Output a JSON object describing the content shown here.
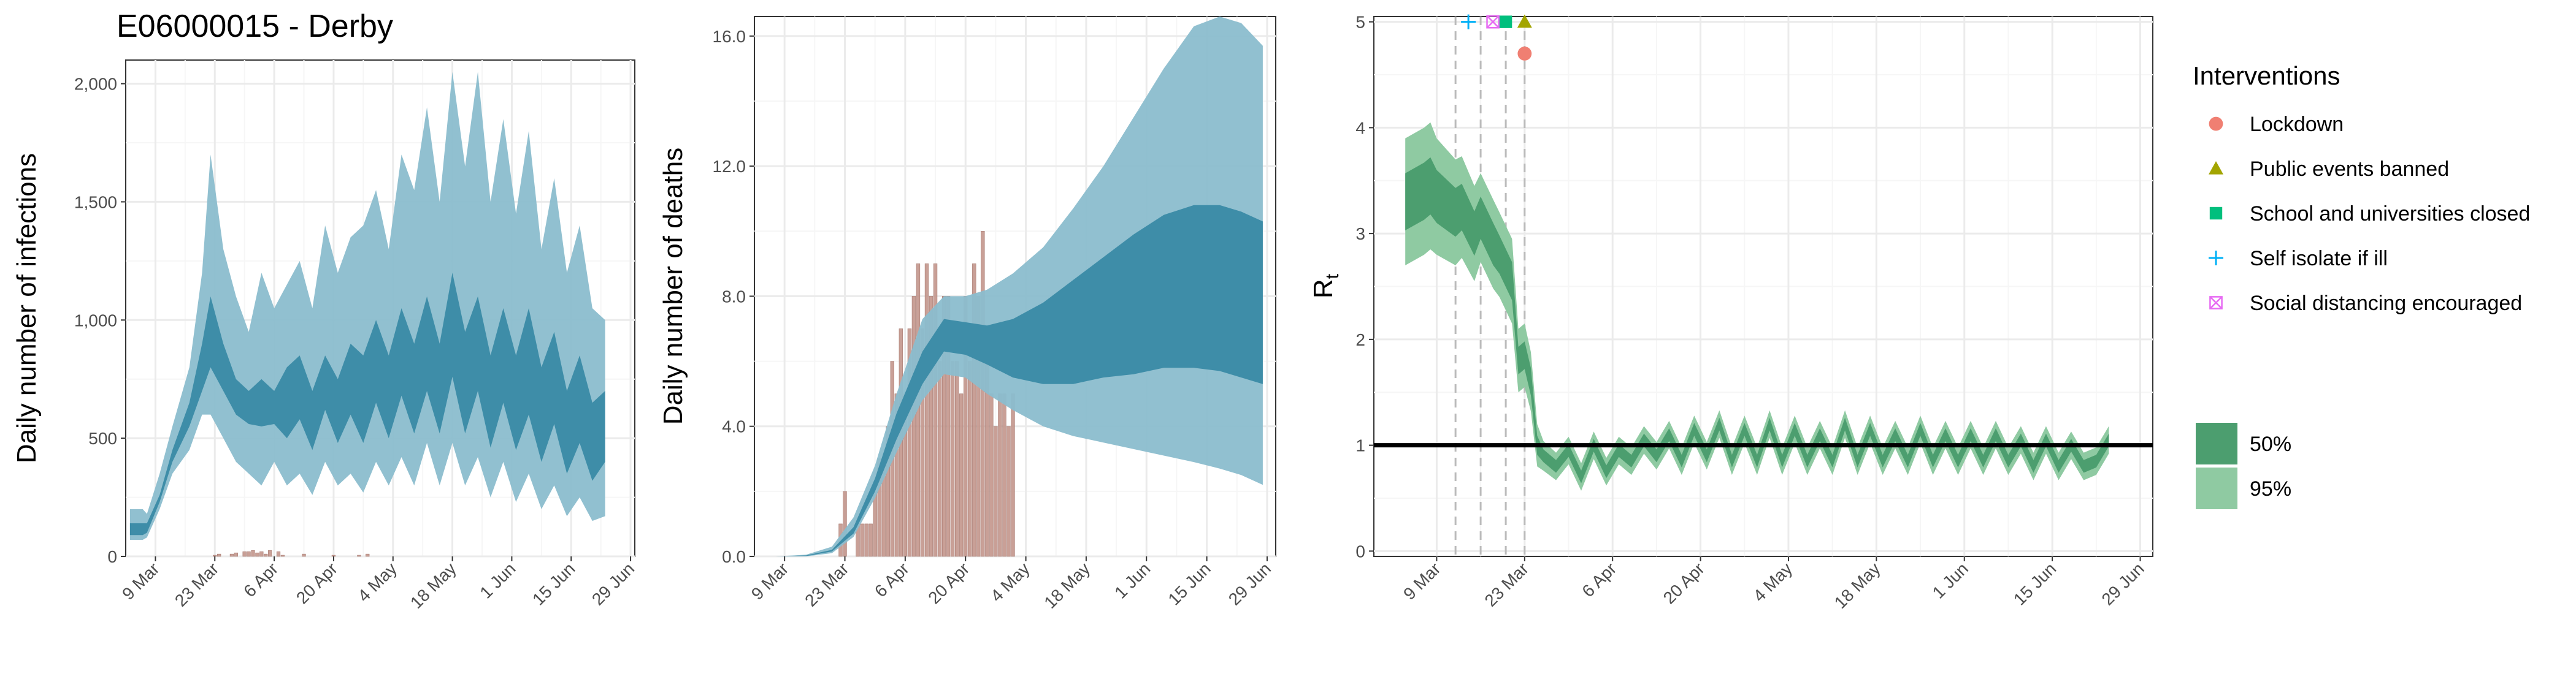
{
  "colors": {
    "band_outer": "#8bbdce",
    "band_inner": "#3a8aa5",
    "bar": "#c3968c",
    "rt_outer": "#8fcaa2",
    "rt_inner": "#4c9e6f",
    "grid_major": "#ebebeb",
    "grid_minor": "#f6f6f6",
    "vline": "#bbbbbb",
    "lockdown": "#f07f72",
    "public_events": "#a3a500",
    "schools": "#00bf7d",
    "self_isolate": "#00b0f6",
    "social_distancing": "#e76bf3"
  },
  "chart_data": [
    {
      "type": "area",
      "title": "E06000015 - Derby",
      "ylabel": "Daily number of infections",
      "xlabel": "",
      "date_range": [
        "2020-03-02",
        "2020-06-30"
      ],
      "ylim": [
        0,
        2100
      ],
      "yticks": [
        0,
        500,
        1000,
        1500,
        2000
      ],
      "ytick_labels": [
        "0",
        "500",
        "1,000",
        "1,500",
        "2,000"
      ],
      "xtick_dates": [
        "2020-03-09",
        "2020-03-23",
        "2020-04-06",
        "2020-04-20",
        "2020-05-04",
        "2020-05-18",
        "2020-06-01",
        "2020-06-15",
        "2020-06-29"
      ],
      "xtick_labels": [
        "9 Mar",
        "23 Mar",
        "6 Apr",
        "20 Apr",
        "4 May",
        "18 May",
        "1 Jun",
        "15 Jun",
        "29 Jun"
      ],
      "grid": true,
      "series": [
        {
          "type": "area_band",
          "x": [
            "2020-03-03",
            "2020-03-06",
            "2020-03-07",
            "2020-03-10",
            "2020-03-13",
            "2020-03-17",
            "2020-03-20",
            "2020-03-22",
            "2020-03-25",
            "2020-03-28",
            "2020-03-31",
            "2020-04-03",
            "2020-04-06",
            "2020-04-09",
            "2020-04-12",
            "2020-04-15",
            "2020-04-18",
            "2020-04-21",
            "2020-04-24",
            "2020-04-27",
            "2020-04-30",
            "2020-05-03",
            "2020-05-06",
            "2020-05-09",
            "2020-05-12",
            "2020-05-15",
            "2020-05-18",
            "2020-05-21",
            "2020-05-24",
            "2020-05-27",
            "2020-05-30",
            "2020-06-02",
            "2020-06-05",
            "2020-06-08",
            "2020-06-11",
            "2020-06-14",
            "2020-06-17",
            "2020-06-20",
            "2020-06-23"
          ],
          "upper": [
            200,
            200,
            180,
            350,
            550,
            800,
            1200,
            1700,
            1300,
            1100,
            950,
            1200,
            1050,
            1150,
            1250,
            1050,
            1400,
            1200,
            1350,
            1400,
            1550,
            1300,
            1700,
            1550,
            1900,
            1500,
            2050,
            1650,
            2050,
            1500,
            1850,
            1450,
            1800,
            1300,
            1600,
            1200,
            1400,
            1050,
            1000
          ],
          "lower": [
            70,
            70,
            80,
            200,
            350,
            450,
            600,
            600,
            500,
            400,
            350,
            300,
            400,
            300,
            350,
            260,
            400,
            300,
            350,
            270,
            400,
            300,
            420,
            300,
            480,
            300,
            480,
            300,
            420,
            250,
            400,
            230,
            350,
            200,
            300,
            170,
            250,
            150,
            170
          ]
        },
        {
          "type": "area_band",
          "x": [
            "2020-03-03",
            "2020-03-06",
            "2020-03-07",
            "2020-03-10",
            "2020-03-13",
            "2020-03-17",
            "2020-03-20",
            "2020-03-22",
            "2020-03-25",
            "2020-03-28",
            "2020-03-31",
            "2020-04-03",
            "2020-04-06",
            "2020-04-09",
            "2020-04-12",
            "2020-04-15",
            "2020-04-18",
            "2020-04-21",
            "2020-04-24",
            "2020-04-27",
            "2020-04-30",
            "2020-05-03",
            "2020-05-06",
            "2020-05-09",
            "2020-05-12",
            "2020-05-15",
            "2020-05-18",
            "2020-05-21",
            "2020-05-24",
            "2020-05-27",
            "2020-05-30",
            "2020-06-02",
            "2020-06-05",
            "2020-06-08",
            "2020-06-11",
            "2020-06-14",
            "2020-06-17",
            "2020-06-20",
            "2020-06-23"
          ],
          "upper": [
            140,
            140,
            140,
            260,
            450,
            650,
            900,
            1100,
            900,
            750,
            700,
            750,
            700,
            800,
            850,
            700,
            850,
            750,
            900,
            850,
            1000,
            850,
            1050,
            900,
            1100,
            900,
            1200,
            950,
            1100,
            850,
            1050,
            850,
            1050,
            800,
            950,
            700,
            850,
            650,
            700
          ],
          "lower": [
            90,
            90,
            100,
            230,
            400,
            550,
            700,
            800,
            700,
            600,
            560,
            550,
            560,
            500,
            580,
            450,
            620,
            480,
            600,
            480,
            650,
            500,
            680,
            520,
            700,
            520,
            760,
            520,
            700,
            460,
            650,
            450,
            600,
            400,
            560,
            350,
            480,
            320,
            400
          ]
        },
        {
          "type": "bar",
          "x": [
            "2020-03-23",
            "2020-03-24",
            "2020-03-27",
            "2020-03-28",
            "2020-03-30",
            "2020-03-31",
            "2020-04-01",
            "2020-04-02",
            "2020-04-03",
            "2020-04-04",
            "2020-04-05",
            "2020-04-07",
            "2020-04-08",
            "2020-04-13",
            "2020-04-20",
            "2020-04-26",
            "2020-04-28"
          ],
          "values": [
            5,
            10,
            10,
            15,
            20,
            20,
            25,
            15,
            20,
            10,
            25,
            20,
            5,
            10,
            5,
            5,
            10
          ]
        }
      ]
    },
    {
      "type": "area",
      "title": "",
      "ylabel": "Daily number of deaths",
      "xlabel": "",
      "date_range": [
        "2020-03-02",
        "2020-07-01"
      ],
      "ylim": [
        0,
        16.6
      ],
      "yticks": [
        0,
        4,
        8,
        12,
        16
      ],
      "ytick_labels": [
        "0.0",
        "4.0",
        "8.0",
        "12.0",
        "16.0"
      ],
      "xtick_dates": [
        "2020-03-09",
        "2020-03-23",
        "2020-04-06",
        "2020-04-20",
        "2020-05-04",
        "2020-05-18",
        "2020-06-01",
        "2020-06-15",
        "2020-06-29"
      ],
      "xtick_labels": [
        "9 Mar",
        "23 Mar",
        "6 Apr",
        "20 Apr",
        "4 May",
        "18 May",
        "1 Jun",
        "15 Jun",
        "29 Jun"
      ],
      "grid": true,
      "series": [
        {
          "type": "area_band",
          "x": [
            "2020-03-07",
            "2020-03-14",
            "2020-03-20",
            "2020-03-25",
            "2020-03-30",
            "2020-04-04",
            "2020-04-10",
            "2020-04-15",
            "2020-04-20",
            "2020-04-25",
            "2020-05-01",
            "2020-05-08",
            "2020-05-15",
            "2020-05-22",
            "2020-05-29",
            "2020-06-05",
            "2020-06-12",
            "2020-06-18",
            "2020-06-23",
            "2020-06-28"
          ],
          "upper": [
            0,
            0.05,
            0.3,
            1.2,
            2.8,
            5.0,
            7.3,
            8.0,
            8.0,
            8.2,
            8.7,
            9.5,
            10.7,
            12.0,
            13.5,
            15.0,
            16.3,
            16.6,
            16.4,
            15.7
          ],
          "lower": [
            0,
            0,
            0.1,
            0.6,
            1.8,
            3.2,
            4.8,
            5.6,
            5.5,
            5.0,
            4.5,
            4.0,
            3.7,
            3.5,
            3.3,
            3.1,
            2.9,
            2.7,
            2.5,
            2.2
          ]
        },
        {
          "type": "area_band",
          "x": [
            "2020-03-07",
            "2020-03-14",
            "2020-03-20",
            "2020-03-25",
            "2020-03-30",
            "2020-04-04",
            "2020-04-10",
            "2020-04-15",
            "2020-04-20",
            "2020-04-25",
            "2020-05-01",
            "2020-05-08",
            "2020-05-15",
            "2020-05-22",
            "2020-05-29",
            "2020-06-05",
            "2020-06-12",
            "2020-06-18",
            "2020-06-23",
            "2020-06-28"
          ],
          "upper": [
            0,
            0.03,
            0.2,
            0.9,
            2.4,
            4.4,
            6.3,
            7.3,
            7.2,
            7.1,
            7.3,
            7.8,
            8.5,
            9.2,
            9.9,
            10.5,
            10.8,
            10.8,
            10.6,
            10.3
          ],
          "lower": [
            0,
            0.01,
            0.15,
            0.7,
            2.0,
            3.6,
            5.3,
            6.3,
            6.2,
            5.9,
            5.5,
            5.3,
            5.3,
            5.5,
            5.6,
            5.8,
            5.8,
            5.7,
            5.5,
            5.3
          ]
        },
        {
          "type": "bar",
          "x": [
            "2020-03-22",
            "2020-03-23",
            "2020-03-26",
            "2020-03-27",
            "2020-03-28",
            "2020-03-29",
            "2020-03-30",
            "2020-03-31",
            "2020-04-01",
            "2020-04-02",
            "2020-04-03",
            "2020-04-04",
            "2020-04-05",
            "2020-04-06",
            "2020-04-07",
            "2020-04-08",
            "2020-04-09",
            "2020-04-10",
            "2020-04-11",
            "2020-04-12",
            "2020-04-13",
            "2020-04-14",
            "2020-04-15",
            "2020-04-16",
            "2020-04-17",
            "2020-04-18",
            "2020-04-19",
            "2020-04-20",
            "2020-04-21",
            "2020-04-22",
            "2020-04-23",
            "2020-04-24",
            "2020-04-25",
            "2020-04-26",
            "2020-04-27",
            "2020-04-28",
            "2020-04-29",
            "2020-04-30",
            "2020-05-01"
          ],
          "values": [
            1,
            2,
            1,
            1,
            1,
            1,
            2,
            3,
            3,
            4,
            6,
            5,
            7,
            5,
            7,
            8,
            9,
            7,
            9,
            8,
            9,
            6,
            8,
            8,
            6,
            6,
            5,
            8,
            6,
            9,
            8,
            10,
            6,
            5,
            4,
            5,
            5,
            4,
            5
          ]
        }
      ]
    },
    {
      "type": "area",
      "title": "",
      "ylabel": "R",
      "ylabel_subscript": "t",
      "xlabel": "",
      "date_range": [
        "2020-02-28",
        "2020-07-01"
      ],
      "ylim": [
        -0.05,
        5.05
      ],
      "yticks": [
        0,
        1,
        2,
        3,
        4,
        5
      ],
      "ytick_labels": [
        "0",
        "1",
        "2",
        "3",
        "4",
        "5"
      ],
      "xtick_dates": [
        "2020-03-09",
        "2020-03-23",
        "2020-04-06",
        "2020-04-20",
        "2020-05-04",
        "2020-05-18",
        "2020-06-01",
        "2020-06-15",
        "2020-06-29"
      ],
      "xtick_labels": [
        "9 Mar",
        "23 Mar",
        "6 Apr",
        "20 Apr",
        "4 May",
        "18 May",
        "1 Jun",
        "15 Jun",
        "29 Jun"
      ],
      "grid": true,
      "reference_line": 1,
      "rt": {
        "x": [
          "2020-03-04",
          "2020-03-07",
          "2020-03-08",
          "2020-03-09",
          "2020-03-12",
          "2020-03-13",
          "2020-03-15",
          "2020-03-16",
          "2020-03-18",
          "2020-03-19",
          "2020-03-21",
          "2020-03-22",
          "2020-03-23",
          "2020-03-24",
          "2020-03-25",
          "2020-03-26",
          "2020-03-28",
          "2020-03-30",
          "2020-04-01",
          "2020-04-03",
          "2020-04-05",
          "2020-04-07",
          "2020-04-09",
          "2020-04-11",
          "2020-04-13",
          "2020-04-15",
          "2020-04-17",
          "2020-04-19",
          "2020-04-21",
          "2020-04-23",
          "2020-04-25",
          "2020-04-27",
          "2020-04-29",
          "2020-05-01",
          "2020-05-03",
          "2020-05-05",
          "2020-05-07",
          "2020-05-09",
          "2020-05-11",
          "2020-05-13",
          "2020-05-15",
          "2020-05-17",
          "2020-05-19",
          "2020-05-21",
          "2020-05-23",
          "2020-05-25",
          "2020-05-27",
          "2020-05-29",
          "2020-05-31",
          "2020-06-02",
          "2020-06-04",
          "2020-06-06",
          "2020-06-08",
          "2020-06-10",
          "2020-06-12",
          "2020-06-14",
          "2020-06-16",
          "2020-06-18",
          "2020-06-20",
          "2020-06-22",
          "2020-06-24"
        ],
        "median": [
          3.3,
          3.4,
          3.45,
          3.35,
          3.2,
          3.25,
          3.0,
          3.15,
          2.9,
          2.8,
          2.55,
          1.8,
          1.85,
          1.6,
          1.0,
          0.9,
          0.8,
          0.95,
          0.7,
          1.0,
          0.75,
          0.95,
          0.85,
          1.05,
          0.9,
          1.1,
          0.85,
          1.15,
          0.9,
          1.2,
          0.85,
          1.15,
          0.85,
          1.2,
          0.85,
          1.15,
          0.85,
          1.1,
          0.85,
          1.2,
          0.85,
          1.15,
          0.85,
          1.1,
          0.85,
          1.15,
          0.85,
          1.1,
          0.85,
          1.1,
          0.85,
          1.1,
          0.85,
          1.05,
          0.8,
          1.05,
          0.8,
          1.0,
          0.8,
          0.85,
          1.05
        ],
        "half50": [
          0.27,
          0.27,
          0.27,
          0.25,
          0.23,
          0.22,
          0.21,
          0.2,
          0.2,
          0.18,
          0.18,
          0.13,
          0.13,
          0.13,
          0.09,
          0.06,
          0.06,
          0.06,
          0.06,
          0.06,
          0.06,
          0.06,
          0.06,
          0.06,
          0.06,
          0.06,
          0.06,
          0.06,
          0.06,
          0.06,
          0.06,
          0.06,
          0.06,
          0.06,
          0.06,
          0.06,
          0.06,
          0.06,
          0.06,
          0.06,
          0.06,
          0.06,
          0.06,
          0.06,
          0.06,
          0.06,
          0.06,
          0.06,
          0.06,
          0.06,
          0.06,
          0.06,
          0.06,
          0.06,
          0.06,
          0.06,
          0.06,
          0.06,
          0.06,
          0.06,
          0.06
        ],
        "half95": [
          0.6,
          0.6,
          0.6,
          0.55,
          0.5,
          0.48,
          0.45,
          0.42,
          0.42,
          0.4,
          0.4,
          0.3,
          0.3,
          0.28,
          0.2,
          0.14,
          0.13,
          0.13,
          0.13,
          0.13,
          0.13,
          0.13,
          0.13,
          0.13,
          0.13,
          0.13,
          0.13,
          0.13,
          0.13,
          0.13,
          0.13,
          0.13,
          0.13,
          0.13,
          0.13,
          0.13,
          0.13,
          0.13,
          0.13,
          0.13,
          0.13,
          0.13,
          0.13,
          0.13,
          0.13,
          0.13,
          0.13,
          0.13,
          0.13,
          0.13,
          0.13,
          0.13,
          0.13,
          0.13,
          0.13,
          0.13,
          0.13,
          0.13,
          0.13,
          0.13,
          0.13
        ]
      },
      "interventions": [
        {
          "date": "2020-03-16",
          "marker": "self_isolate",
          "y": 5.0
        },
        {
          "date": "2020-03-16",
          "marker": "social_distancing",
          "y": 5.0
        },
        {
          "date": "2020-03-20",
          "marker": "schools",
          "y": 5.0
        },
        {
          "date": "2020-03-23",
          "marker": "public_events",
          "y": 5.0
        },
        {
          "date": "2020-03-23",
          "marker": "lockdown",
          "y": 4.7
        }
      ],
      "vlines": [
        "2020-03-12",
        "2020-03-16",
        "2020-03-20",
        "2020-03-23"
      ]
    }
  ],
  "legend": {
    "title": "Interventions",
    "items": [
      {
        "key": "lockdown",
        "shape": "circle",
        "label": "Lockdown"
      },
      {
        "key": "public_events",
        "shape": "triangle",
        "label": "Public events banned"
      },
      {
        "key": "schools",
        "shape": "square",
        "label": "School and universities closed"
      },
      {
        "key": "self_isolate",
        "shape": "plus",
        "label": "Self isolate if ill"
      },
      {
        "key": "social_distancing",
        "shape": "boxx",
        "label": "Social distancing encouraged"
      }
    ],
    "bands": [
      {
        "key": "rt_inner",
        "label": "50%"
      },
      {
        "key": "rt_outer",
        "label": "95%"
      }
    ]
  }
}
